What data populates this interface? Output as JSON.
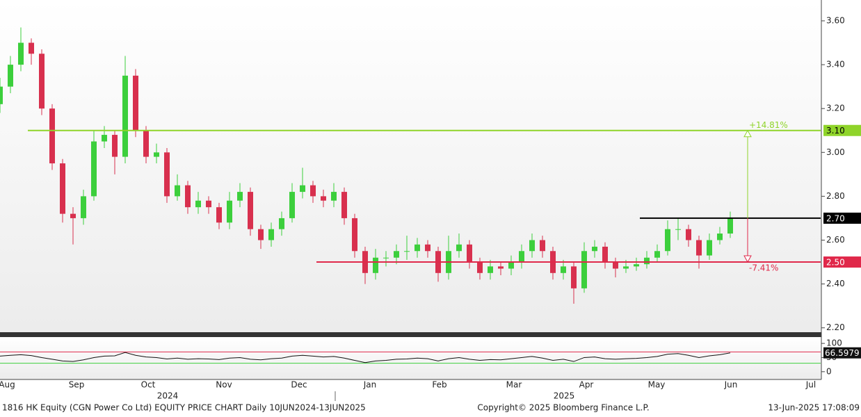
{
  "chart_data": [
    {
      "type": "candlestick",
      "x": [
        0,
        3,
        6,
        9,
        12,
        15,
        18,
        21,
        24,
        27,
        30,
        33,
        36,
        39,
        42,
        45,
        48,
        51,
        54,
        57,
        60,
        63,
        66,
        69,
        72,
        75,
        78,
        81,
        84,
        87,
        90,
        93,
        96,
        99,
        102,
        105,
        108,
        111,
        114,
        117,
        120,
        123,
        126,
        129,
        132,
        135,
        138,
        141,
        144,
        147,
        150,
        153,
        156,
        159,
        162,
        165,
        168,
        171,
        174,
        177,
        180,
        183,
        186,
        189,
        192,
        195,
        198,
        201,
        204,
        207,
        210
      ],
      "open": [
        3.22,
        3.3,
        3.4,
        3.5,
        3.45,
        3.2,
        2.95,
        2.72,
        2.7,
        2.8,
        3.05,
        3.08,
        2.98,
        3.35,
        3.1,
        2.98,
        3.0,
        2.8,
        2.85,
        2.75,
        2.78,
        2.75,
        2.68,
        2.78,
        2.82,
        2.65,
        2.6,
        2.65,
        2.7,
        2.82,
        2.85,
        2.8,
        2.78,
        2.82,
        2.7,
        2.55,
        2.45,
        2.52,
        2.52,
        2.55,
        2.55,
        2.58,
        2.55,
        2.45,
        2.55,
        2.58,
        2.5,
        2.45,
        2.48,
        2.47,
        2.5,
        2.55,
        2.6,
        2.55,
        2.45,
        2.48,
        2.38,
        2.55,
        2.57,
        2.5,
        2.47,
        2.48,
        2.49,
        2.52,
        2.55,
        2.65,
        2.65,
        2.6,
        2.53,
        2.6,
        2.63
      ],
      "high": [
        3.34,
        3.44,
        3.57,
        3.52,
        3.47,
        3.22,
        2.97,
        2.75,
        2.83,
        3.1,
        3.12,
        3.1,
        3.44,
        3.38,
        3.12,
        3.04,
        3.02,
        2.9,
        2.87,
        2.82,
        2.8,
        2.77,
        2.82,
        2.86,
        2.84,
        2.67,
        2.68,
        2.73,
        2.86,
        2.93,
        2.87,
        2.83,
        2.86,
        2.84,
        2.72,
        2.57,
        2.56,
        2.55,
        2.58,
        2.62,
        2.61,
        2.6,
        2.57,
        2.62,
        2.63,
        2.6,
        2.52,
        2.51,
        2.5,
        2.53,
        2.58,
        2.63,
        2.62,
        2.57,
        2.51,
        2.5,
        2.59,
        2.6,
        2.59,
        2.52,
        2.51,
        2.52,
        2.55,
        2.58,
        2.69,
        2.7,
        2.67,
        2.62,
        2.63,
        2.66,
        2.73
      ],
      "low": [
        3.18,
        3.27,
        3.37,
        3.4,
        3.17,
        2.92,
        2.68,
        2.58,
        2.67,
        2.78,
        3.02,
        2.9,
        2.95,
        3.07,
        2.95,
        2.95,
        2.77,
        2.78,
        2.72,
        2.72,
        2.72,
        2.65,
        2.65,
        2.75,
        2.62,
        2.56,
        2.57,
        2.62,
        2.68,
        2.79,
        2.77,
        2.75,
        2.75,
        2.67,
        2.52,
        2.4,
        2.42,
        2.48,
        2.49,
        2.51,
        2.52,
        2.52,
        2.41,
        2.42,
        2.52,
        2.47,
        2.42,
        2.42,
        2.44,
        2.44,
        2.47,
        2.52,
        2.52,
        2.42,
        2.42,
        2.31,
        2.36,
        2.52,
        2.47,
        2.43,
        2.45,
        2.46,
        2.47,
        2.5,
        2.53,
        2.6,
        2.57,
        2.47,
        2.51,
        2.58,
        2.61
      ],
      "close": [
        3.3,
        3.4,
        3.5,
        3.45,
        3.2,
        2.95,
        2.72,
        2.7,
        2.8,
        3.05,
        3.08,
        2.98,
        3.35,
        3.1,
        2.98,
        3.0,
        2.8,
        2.85,
        2.75,
        2.78,
        2.75,
        2.68,
        2.78,
        2.82,
        2.65,
        2.6,
        2.65,
        2.7,
        2.82,
        2.85,
        2.8,
        2.78,
        2.82,
        2.7,
        2.55,
        2.45,
        2.52,
        2.52,
        2.55,
        2.55,
        2.58,
        2.55,
        2.45,
        2.55,
        2.58,
        2.5,
        2.45,
        2.48,
        2.47,
        2.5,
        2.55,
        2.6,
        2.55,
        2.45,
        2.48,
        2.38,
        2.55,
        2.57,
        2.5,
        2.47,
        2.48,
        2.49,
        2.52,
        2.55,
        2.65,
        2.65,
        2.6,
        2.53,
        2.6,
        2.63,
        2.7
      ],
      "up_color": "#3ccf3c",
      "down_color": "#d8304e",
      "xlim": [
        0,
        236
      ],
      "ylim": [
        2.18,
        3.695
      ],
      "yticks": [
        {
          "value": 2.2,
          "label": "2.20"
        },
        {
          "value": 2.4,
          "label": "2.40"
        },
        {
          "value": 2.6,
          "label": "2.60"
        },
        {
          "value": 2.8,
          "label": "2.80"
        },
        {
          "value": 3.0,
          "label": "3.00"
        },
        {
          "value": 3.2,
          "label": "3.20"
        },
        {
          "value": 3.4,
          "label": "3.40"
        },
        {
          "value": 3.6,
          "label": "3.60"
        }
      ],
      "xticks": [
        {
          "value": 2,
          "label": "Aug"
        },
        {
          "value": 22,
          "label": "Sep"
        },
        {
          "value": 42.6,
          "label": "Oct"
        },
        {
          "value": 64.4,
          "label": "Nov"
        },
        {
          "value": 86,
          "label": "Dec"
        },
        {
          "value": 106.4,
          "label": "Jan"
        },
        {
          "value": 126.4,
          "label": "Feb"
        },
        {
          "value": 147.8,
          "label": "Mar"
        },
        {
          "value": 168.6,
          "label": "Apr"
        },
        {
          "value": 188.8,
          "label": "May"
        },
        {
          "value": 210.2,
          "label": "Jun"
        },
        {
          "value": 233.2,
          "label": "Jul"
        }
      ],
      "year_labels": [
        {
          "value": 48.2,
          "label": "2024"
        },
        {
          "value": 162.2,
          "label": "2025"
        }
      ],
      "hlines": [
        {
          "value": 3.1,
          "label": "3.10",
          "color": "#8fd42a",
          "start": 8
        },
        {
          "value": 2.7,
          "label": "2.70",
          "color": "#000000",
          "start": 184
        },
        {
          "value": 2.5,
          "label": "2.50",
          "color": "#e0284a",
          "start": 91
        }
      ],
      "annotations": [
        {
          "text": "+14.81%",
          "color": "#8fd42a"
        },
        {
          "text": "-7.41%",
          "color": "#e0284a"
        }
      ]
    },
    {
      "type": "line",
      "x": [
        0,
        3,
        6,
        9,
        12,
        15,
        18,
        21,
        24,
        27,
        30,
        33,
        36,
        39,
        42,
        45,
        48,
        51,
        54,
        57,
        60,
        63,
        66,
        69,
        72,
        75,
        78,
        81,
        84,
        87,
        90,
        93,
        96,
        99,
        102,
        105,
        108,
        111,
        114,
        117,
        120,
        123,
        126,
        129,
        132,
        135,
        138,
        141,
        144,
        147,
        150,
        153,
        156,
        159,
        162,
        165,
        168,
        171,
        174,
        177,
        180,
        183,
        186,
        189,
        192,
        195,
        198,
        201,
        204,
        207,
        210
      ],
      "values": [
        55,
        58,
        60,
        57,
        50,
        44,
        38,
        36,
        42,
        50,
        55,
        56,
        68,
        58,
        52,
        50,
        45,
        48,
        44,
        46,
        45,
        43,
        48,
        50,
        44,
        42,
        46,
        48,
        55,
        58,
        55,
        52,
        54,
        48,
        40,
        32,
        38,
        40,
        44,
        45,
        48,
        46,
        38,
        46,
        50,
        44,
        40,
        43,
        42,
        46,
        50,
        54,
        48,
        40,
        44,
        36,
        50,
        52,
        46,
        44,
        46,
        47,
        50,
        54,
        62,
        64,
        58,
        50,
        56,
        60,
        66.5979
      ],
      "color": "#111111",
      "last_label": "66.5979",
      "xlim": [
        0,
        236
      ],
      "ylim": [
        -25,
        115
      ],
      "yticks": [
        0,
        50,
        100
      ],
      "hlines": [
        {
          "value": 70,
          "color": "#e0284a"
        },
        {
          "value": 30,
          "color": "#3ccf3c"
        }
      ]
    }
  ],
  "footer": {
    "left": "1816 HK Equity (CGN Power Co Ltd) EQUITY PRICE CHART  Daily 10JUN2024-13JUN2025",
    "center": "Copyright© 2025 Bloomberg Finance L.P.",
    "right": "13-Jun-2025 17:08:09"
  }
}
